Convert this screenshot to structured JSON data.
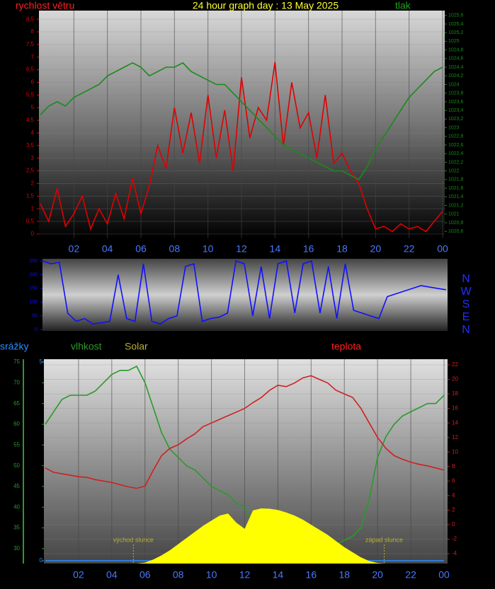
{
  "chart_data": [
    {
      "type": "line",
      "title": "24 hour graph day : 13 May 2025",
      "x": [
        0,
        0.5,
        1,
        1.5,
        2,
        2.5,
        3,
        3.5,
        4,
        4.5,
        5,
        5.5,
        6,
        6.5,
        7,
        7.5,
        8,
        8.5,
        9,
        9.5,
        10,
        10.5,
        11,
        11.5,
        12,
        12.5,
        13,
        13.5,
        14,
        14.5,
        15,
        15.5,
        16,
        16.5,
        17,
        17.5,
        18,
        18.5,
        19,
        19.5,
        20,
        20.5,
        21,
        21.5,
        22,
        22.5,
        23,
        23.5,
        24
      ],
      "xlim": [
        0,
        24
      ],
      "xticks": [
        {
          "value": 2,
          "label": "02"
        },
        {
          "value": 4,
          "label": "04"
        },
        {
          "value": 6,
          "label": "06"
        },
        {
          "value": 8,
          "label": "08"
        },
        10,
        12,
        14,
        16,
        18,
        20,
        22,
        {
          "value": 24,
          "label": "00"
        }
      ],
      "ylim": [
        -0.17,
        8.84
      ],
      "yticks": [
        0,
        {
          "value": 0.5,
          "label": "0,5"
        },
        1,
        {
          "value": 1.5,
          "label": "1,5"
        },
        2,
        {
          "value": 2.5,
          "label": "2,5"
        },
        3,
        {
          "value": 3.5,
          "label": "3,5"
        },
        4,
        {
          "value": 4.5,
          "label": "4,5"
        },
        5,
        {
          "value": 5.5,
          "label": "5,5"
        },
        6,
        {
          "value": 6.5,
          "label": "6,5"
        },
        7,
        {
          "value": 7.5,
          "label": "7,5"
        },
        8,
        {
          "value": 8.5,
          "label": "8,5"
        }
      ],
      "y2lim": [
        1020.44,
        1025.71
      ],
      "y2ticks": [
        {
          "value": 1020.6,
          "label": "1020,6"
        },
        {
          "value": 1020.8,
          "label": "1020,8"
        },
        1021,
        {
          "value": 1021.2,
          "label": "1021,2"
        },
        {
          "value": 1021.4,
          "label": "1021,4"
        },
        {
          "value": 1021.6,
          "label": "1021,6"
        },
        {
          "value": 1021.8,
          "label": "1021,8"
        },
        1022,
        {
          "value": 1022.2,
          "label": "1022,2"
        },
        {
          "value": 1022.4,
          "label": "1022,4"
        },
        {
          "value": 1022.6,
          "label": "1022,6"
        },
        {
          "value": 1022.8,
          "label": "1022,8"
        },
        1023,
        {
          "value": 1023.2,
          "label": "1023,2"
        },
        {
          "value": 1023.4,
          "label": "1023,4"
        },
        {
          "value": 1023.6,
          "label": "1023,6"
        },
        {
          "value": 1023.8,
          "label": "1023,8"
        },
        1024,
        {
          "value": 1024.2,
          "label": "1024,2"
        },
        {
          "value": 1024.4,
          "label": "1024,4"
        },
        {
          "value": 1024.6,
          "label": "1024,6"
        },
        {
          "value": 1024.8,
          "label": "1024,8"
        },
        1025,
        {
          "value": 1025.2,
          "label": "1025,2"
        },
        {
          "value": 1025.4,
          "label": "1025,4"
        },
        {
          "value": 1025.6,
          "label": "1025,6"
        }
      ],
      "grid": true,
      "series": [
        {
          "name": "rychlost větru",
          "color": "#e00000",
          "axis": "y",
          "values": [
            1.2,
            0.5,
            1.8,
            0.3,
            0.8,
            1.5,
            0.2,
            1.0,
            0.4,
            1.6,
            0.6,
            2.2,
            0.8,
            1.9,
            3.5,
            2.6,
            5.0,
            3.2,
            4.8,
            2.8,
            5.5,
            3.0,
            4.9,
            2.5,
            6.2,
            3.8,
            5.0,
            4.5,
            6.8,
            3.5,
            6.0,
            4.2,
            4.8,
            3.0,
            5.5,
            2.8,
            3.2,
            2.5,
            2.0,
            1.0,
            0.2,
            0.3,
            0.1,
            0.4,
            0.2,
            0.3,
            0.1,
            0.5,
            0.9
          ]
        },
        {
          "name": "tlak",
          "color": "#1a8a1a",
          "axis": "y2",
          "values": [
            1023.3,
            1023.5,
            1023.6,
            1023.5,
            1023.7,
            1023.8,
            1023.9,
            1024.0,
            1024.2,
            1024.3,
            1024.4,
            1024.5,
            1024.4,
            1024.2,
            1024.3,
            1024.4,
            1024.4,
            1024.5,
            1024.3,
            1024.2,
            1024.1,
            1024.0,
            1024.0,
            1023.8,
            1023.6,
            1023.4,
            1023.2,
            1023.0,
            1022.8,
            1022.6,
            1022.5,
            1022.4,
            1022.3,
            1022.2,
            1022.1,
            1022.0,
            1022.0,
            1021.9,
            1021.8,
            1022.1,
            1022.5,
            1022.8,
            1023.1,
            1023.4,
            1023.7,
            1023.9,
            1024.1,
            1024.3,
            1024.4
          ]
        }
      ]
    },
    {
      "type": "line",
      "x": [
        0,
        0.5,
        1,
        1.5,
        2,
        2.5,
        3,
        3.5,
        4,
        4.5,
        5,
        5.5,
        6,
        6.5,
        7,
        7.5,
        8,
        8.5,
        9,
        9.5,
        10,
        10.5,
        11,
        11.5,
        12,
        12.5,
        13,
        13.5,
        14,
        14.5,
        15,
        15.5,
        16,
        16.5,
        17,
        17.5,
        18,
        18.5,
        19,
        19.5,
        20,
        20.5,
        21,
        21.5,
        22,
        22.5,
        23,
        23.5,
        24
      ],
      "xlim": [
        0,
        24
      ],
      "ylim": [
        -5,
        258
      ],
      "yticks": [
        0,
        50,
        100,
        150,
        200,
        250
      ],
      "compass": [
        "N",
        "W",
        "S",
        "E",
        "N"
      ],
      "series": [
        {
          "color": "#1010ff",
          "axis": "y",
          "values": [
            250,
            240,
            245,
            60,
            30,
            40,
            20,
            25,
            30,
            200,
            40,
            30,
            240,
            30,
            20,
            40,
            50,
            230,
            240,
            30,
            40,
            45,
            60,
            250,
            240,
            50,
            230,
            40,
            240,
            250,
            60,
            240,
            250,
            60,
            230,
            40,
            240,
            70,
            60,
            50,
            40,
            120,
            130,
            140,
            150,
            160,
            155,
            150,
            145
          ]
        }
      ]
    },
    {
      "type": "line",
      "x": [
        0,
        0.5,
        1,
        1.5,
        2,
        2.5,
        3,
        3.5,
        4,
        4.5,
        5,
        5.5,
        6,
        6.5,
        7,
        7.5,
        8,
        8.5,
        9,
        9.5,
        10,
        10.5,
        11,
        11.5,
        12,
        12.5,
        13,
        13.5,
        14,
        14.5,
        15,
        15.5,
        16,
        16.5,
        17,
        17.5,
        18,
        18.5,
        19,
        19.5,
        20,
        20.5,
        21,
        21.5,
        22,
        22.5,
        23,
        23.5,
        24
      ],
      "xlim": [
        0,
        24
      ],
      "xticks": [
        {
          "value": 2,
          "label": "02"
        },
        {
          "value": 4,
          "label": "04"
        },
        {
          "value": 6,
          "label": "06"
        },
        {
          "value": 8,
          "label": "08"
        },
        10,
        12,
        14,
        16,
        18,
        20,
        22,
        {
          "value": 24,
          "label": "00"
        }
      ],
      "ylim": [
        26.4,
        75.7
      ],
      "yticks": [
        30,
        35,
        40,
        45,
        50,
        55,
        60,
        65,
        70,
        75
      ],
      "y2lim": [
        -5.36,
        22.78
      ],
      "y2ticks": [
        -4,
        -2,
        0,
        2,
        4,
        6,
        8,
        10,
        12,
        14,
        16,
        18,
        20,
        22
      ],
      "y3lim": [
        -0.07,
        5.07
      ],
      "y3ticks": [
        0,
        5
      ],
      "y4lim": [
        0,
        1000
      ],
      "grid": true,
      "annotations": [
        {
          "text": "východ slunce",
          "x": 5.3
        },
        {
          "text": "západ slunce",
          "x": 20.4
        }
      ],
      "series": [
        {
          "name": "srážky",
          "color": "#2a8cff",
          "axis": "y3",
          "values": [
            0,
            0,
            0,
            0,
            0,
            0,
            0,
            0,
            0,
            0,
            0,
            0,
            0,
            0,
            0,
            0,
            0,
            0,
            0,
            0,
            0,
            0,
            0,
            0,
            0,
            0,
            0,
            0,
            0,
            0,
            0,
            0,
            0,
            0,
            0,
            0,
            0,
            0,
            0,
            0,
            0,
            0,
            0,
            0,
            0,
            0,
            0,
            0,
            0
          ]
        },
        {
          "name": "vlhkost",
          "color": "#2a9a2a",
          "axis": "y",
          "values": [
            60,
            63,
            66,
            67,
            67,
            67,
            68,
            70,
            72,
            73,
            73,
            74,
            70,
            64,
            58,
            54,
            52,
            50,
            49,
            47,
            45,
            44,
            43,
            41,
            40,
            36,
            37,
            36,
            35,
            34,
            33,
            33,
            32,
            31,
            31,
            31,
            32,
            33,
            35,
            42,
            52,
            57,
            60,
            62,
            63,
            64,
            65,
            65,
            67
          ]
        },
        {
          "name": "Solar",
          "color": "#ffff00",
          "axis": "y4",
          "style": "area",
          "values": [
            0,
            0,
            0,
            0,
            0,
            0,
            0,
            0,
            0,
            0,
            0,
            0,
            5,
            20,
            40,
            65,
            95,
            125,
            155,
            185,
            210,
            235,
            245,
            200,
            170,
            260,
            270,
            268,
            262,
            250,
            235,
            215,
            190,
            165,
            140,
            110,
            80,
            55,
            30,
            12,
            3,
            0,
            0,
            0,
            0,
            0,
            0,
            0,
            0
          ]
        },
        {
          "name": "teplota",
          "color": "#d02020",
          "axis": "y2",
          "values": [
            7.8,
            7.2,
            7.0,
            6.8,
            6.6,
            6.5,
            6.2,
            6.0,
            5.8,
            5.5,
            5.2,
            5.0,
            5.3,
            7.5,
            9.5,
            10.5,
            11.0,
            11.8,
            12.5,
            13.5,
            14.0,
            14.5,
            15.0,
            15.5,
            16.0,
            16.8,
            17.5,
            18.5,
            19.2,
            19.0,
            19.5,
            20.2,
            20.5,
            20.0,
            19.5,
            18.5,
            18.0,
            17.5,
            16.0,
            14.0,
            12.0,
            10.5,
            9.5,
            9.0,
            8.6,
            8.3,
            8.1,
            7.8,
            7.5
          ]
        }
      ]
    }
  ]
}
